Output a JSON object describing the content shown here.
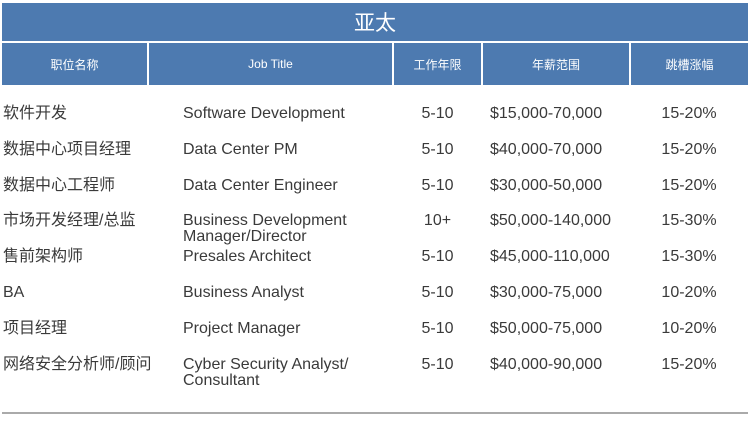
{
  "title": "亚太",
  "columns": [
    "职位名称",
    "Job Title",
    "工作年限",
    "年薪范围",
    "跳槽涨幅"
  ],
  "rows": [
    [
      "软件开发",
      "Software Development",
      "5-10",
      "$15,000-70,000",
      "15-20%"
    ],
    [
      "数据中心项目经理",
      "Data Center PM",
      "5-10",
      "$40,000-70,000",
      "15-20%"
    ],
    [
      "数据中心工程师",
      "Data Center Engineer",
      "5-10",
      "$30,000-50,000",
      "15-20%"
    ],
    [
      "市场开发经理/总监",
      "Business Development Manager/Director",
      "10+",
      "$50,000-140,000",
      "15-30%"
    ],
    [
      "售前架构师",
      "Presales Architect",
      "5-10",
      "$45,000-110,000",
      "15-30%"
    ],
    [
      "BA",
      "Business Analyst",
      "5-10",
      "$30,000-75,000",
      "10-20%"
    ],
    [
      "项目经理",
      "Project Manager",
      "5-10",
      "$50,000-75,000",
      "10-20%"
    ],
    [
      "网络安全分析师/顾问",
      "Cyber Security Analyst/ Consultant",
      "5-10",
      "$40,000-90,000",
      "15-20%"
    ]
  ],
  "colors": {
    "header": "#4d7ab0"
  }
}
